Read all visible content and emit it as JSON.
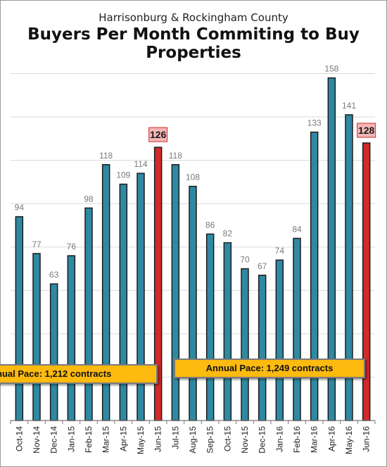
{
  "subtitle": "Harrisonburg & Rockingham County",
  "title": "Buyers Per Month Commiting to Buy Properties",
  "annotations": {
    "pace_1": "nual Pace: 1,212 contracts",
    "pace_2": "Annual Pace: 1,249 contracts"
  },
  "colors": {
    "bar": "#2f89a2",
    "highlight": "#cf2b2b",
    "highlight_label_bg": "#f4b6b6",
    "annotation_bg": "#fdba0f"
  },
  "chart_data": {
    "type": "bar",
    "title": "Buyers Per Month Commiting to Buy Properties",
    "subtitle": "Harrisonburg & Rockingham County",
    "xlabel": "",
    "ylabel": "",
    "ylim": [
      0,
      166
    ],
    "grid": true,
    "categories": [
      "Oct-14",
      "Nov-14",
      "Dec-14",
      "Jan-15",
      "Feb-15",
      "Mar-15",
      "Apr-15",
      "May-15",
      "Jun-15",
      "Jul-15",
      "Aug-15",
      "Sep-15",
      "Oct-15",
      "Nov-15",
      "Dec-15",
      "Jan-16",
      "Feb-16",
      "Mar-16",
      "Apr-16",
      "May-16",
      "Jun-16"
    ],
    "values": [
      94,
      77,
      63,
      76,
      98,
      118,
      109,
      114,
      126,
      118,
      108,
      86,
      82,
      70,
      67,
      74,
      84,
      133,
      158,
      141,
      128
    ],
    "highlighted": [
      "Jun-15",
      "Jun-16"
    ]
  }
}
